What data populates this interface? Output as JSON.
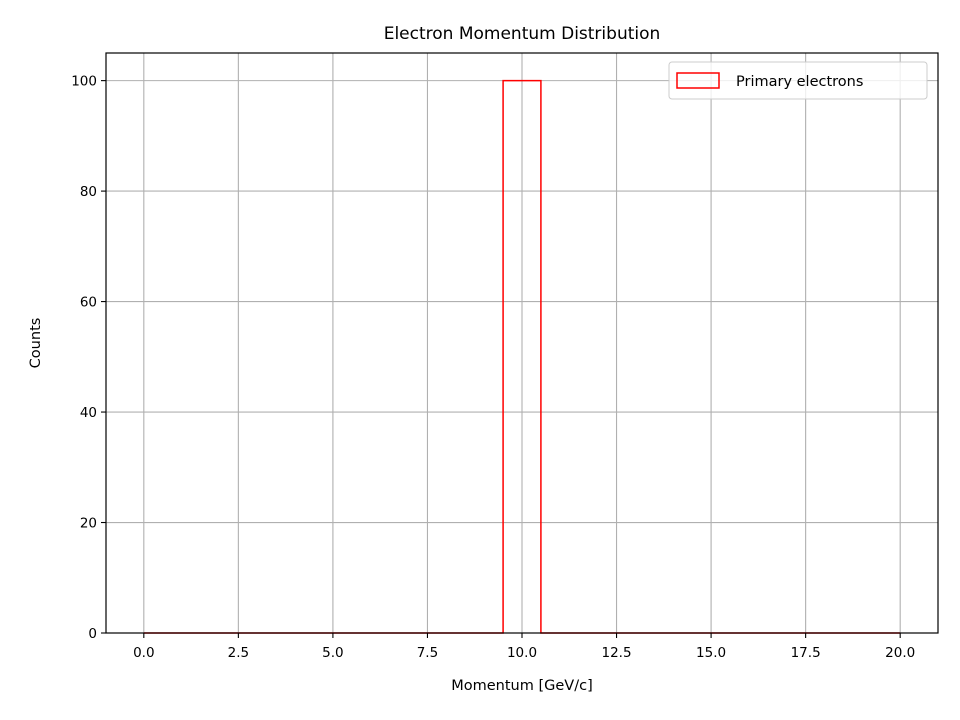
{
  "chart_data": {
    "type": "bar",
    "title": "Electron Momentum Distribution",
    "xlabel": "Momentum [GeV/c]",
    "ylabel": "Counts",
    "xlim": [
      -1.0,
      21.0
    ],
    "ylim": [
      0,
      105
    ],
    "xticks": [
      0.0,
      2.5,
      5.0,
      7.5,
      10.0,
      12.5,
      15.0,
      17.5,
      20.0
    ],
    "xtick_labels": [
      "0.0",
      "2.5",
      "5.0",
      "7.5",
      "10.0",
      "12.5",
      "15.0",
      "17.5",
      "20.0"
    ],
    "yticks": [
      0,
      20,
      40,
      60,
      80,
      100
    ],
    "ytick_labels": [
      "0",
      "20",
      "40",
      "60",
      "80",
      "100"
    ],
    "grid": true,
    "legend_position": "top-right",
    "series": [
      {
        "name": "Primary electrons",
        "histtype": "step",
        "color": "#ff0000",
        "bin_range": [
          0.0,
          20.0
        ],
        "bins": 40,
        "counts": [
          0,
          0,
          0,
          0,
          0,
          0,
          0,
          0,
          0,
          0,
          0,
          0,
          0,
          0,
          0,
          0,
          0,
          0,
          0,
          100,
          100,
          0,
          0,
          0,
          0,
          0,
          0,
          0,
          0,
          0,
          0,
          0,
          0,
          0,
          0,
          0,
          0,
          0,
          0,
          0
        ]
      }
    ]
  }
}
